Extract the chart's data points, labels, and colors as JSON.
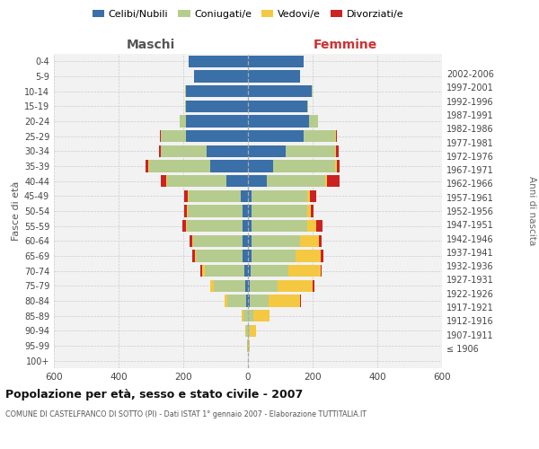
{
  "age_groups": [
    "100+",
    "95-99",
    "90-94",
    "85-89",
    "80-84",
    "75-79",
    "70-74",
    "65-69",
    "60-64",
    "55-59",
    "50-54",
    "45-49",
    "40-44",
    "35-39",
    "30-34",
    "25-29",
    "20-24",
    "15-19",
    "10-14",
    "5-9",
    "0-4"
  ],
  "birth_years": [
    "≤ 1906",
    "1907-1911",
    "1912-1916",
    "1917-1921",
    "1922-1926",
    "1927-1931",
    "1932-1936",
    "1937-1941",
    "1942-1946",
    "1947-1951",
    "1952-1956",
    "1957-1961",
    "1962-1966",
    "1967-1971",
    "1972-1976",
    "1977-1981",
    "1982-1986",
    "1987-1991",
    "1992-1996",
    "1997-2001",
    "2002-2006"
  ],
  "maschi": {
    "celibi": [
      0,
      0,
      0,
      0,
      5,
      8,
      12,
      18,
      18,
      18,
      18,
      22,
      68,
      118,
      128,
      192,
      192,
      192,
      192,
      168,
      182
    ],
    "coniugati": [
      0,
      2,
      5,
      15,
      58,
      98,
      122,
      142,
      152,
      172,
      168,
      162,
      182,
      188,
      142,
      78,
      18,
      2,
      2,
      0,
      0
    ],
    "vedovi": [
      0,
      0,
      2,
      5,
      10,
      10,
      8,
      5,
      3,
      2,
      2,
      2,
      2,
      2,
      0,
      0,
      0,
      0,
      0,
      0,
      0
    ],
    "divorziati": [
      0,
      0,
      0,
      0,
      0,
      2,
      5,
      8,
      8,
      10,
      8,
      10,
      18,
      8,
      5,
      2,
      0,
      0,
      0,
      0,
      0
    ]
  },
  "femmine": {
    "nubili": [
      0,
      0,
      0,
      0,
      5,
      5,
      8,
      10,
      10,
      10,
      10,
      12,
      58,
      78,
      118,
      172,
      188,
      182,
      198,
      162,
      172
    ],
    "coniugate": [
      0,
      2,
      5,
      18,
      58,
      88,
      118,
      138,
      152,
      172,
      172,
      172,
      182,
      192,
      152,
      98,
      28,
      5,
      2,
      0,
      0
    ],
    "vedove": [
      0,
      3,
      20,
      48,
      98,
      108,
      98,
      78,
      58,
      28,
      12,
      8,
      5,
      5,
      2,
      2,
      0,
      0,
      0,
      0,
      0
    ],
    "divorziate": [
      0,
      0,
      0,
      0,
      2,
      5,
      5,
      8,
      8,
      20,
      10,
      20,
      38,
      8,
      8,
      2,
      0,
      0,
      0,
      0,
      0
    ]
  },
  "colors": {
    "celibi": "#3a6fa8",
    "coniugati": "#b5cc8e",
    "vedovi": "#f5c842",
    "divorziati": "#cc2222"
  },
  "xlim": 600,
  "title": "Popolazione per età, sesso e stato civile - 2007",
  "subtitle": "COMUNE DI CASTELFRANCO DI SOTTO (PI) - Dati ISTAT 1° gennaio 2007 - Elaborazione TUTTITALIA.IT",
  "ylabel": "Fasce di età",
  "ylabel_right": "Anni di nascita",
  "xlabel_maschi": "Maschi",
  "xlabel_femmine": "Femmine",
  "legend_labels": [
    "Celibi/Nubili",
    "Coniugati/e",
    "Vedovi/e",
    "Divorziati/e"
  ],
  "bg_color": "#f2f2f2",
  "grid_color": "#cccccc",
  "legend_marker_colors": [
    "#3a6fa8",
    "#b5cc8e",
    "#f5c842",
    "#cc2222"
  ]
}
